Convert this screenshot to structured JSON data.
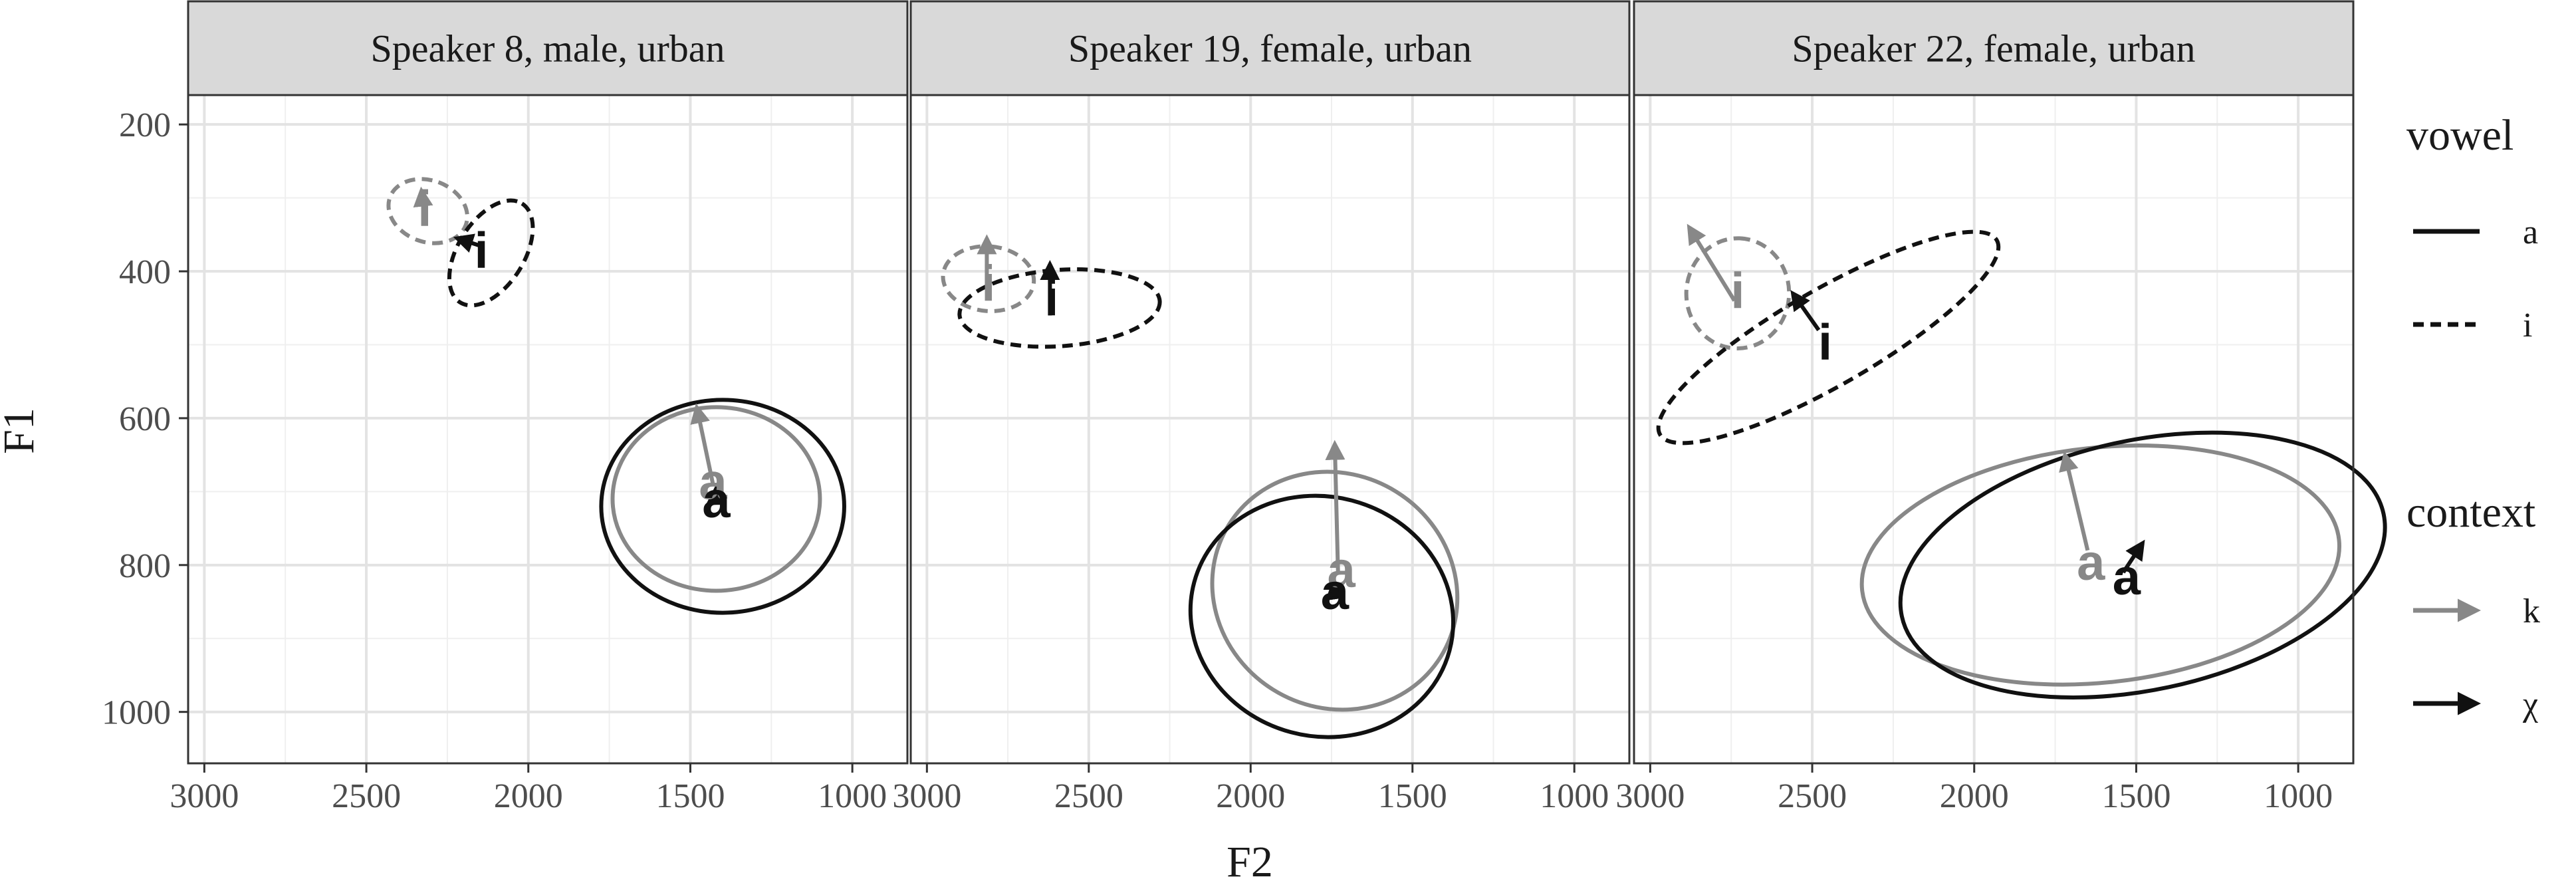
{
  "chart_data": {
    "type": "scatter",
    "xlabel": "F2",
    "ylabel": "F1",
    "x_reversed": true,
    "y_reversed": true,
    "xlim": [
      3050,
      830
    ],
    "ylim": [
      1070,
      160
    ],
    "x_ticks": [
      3000,
      2500,
      2000,
      1500,
      1000
    ],
    "y_ticks": [
      200,
      400,
      600,
      800,
      1000
    ],
    "grid": true,
    "colors": {
      "k": "#888888",
      "χ": "#111111"
    },
    "legend": {
      "position": "right",
      "vowel": {
        "title": "vowel",
        "items": [
          {
            "label": "a",
            "linetype": "solid"
          },
          {
            "label": "i",
            "linetype": "dashed"
          }
        ]
      },
      "context": {
        "title": "context",
        "items": [
          {
            "label": "k",
            "color": "#888888"
          },
          {
            "label": "χ",
            "color": "#111111"
          }
        ]
      }
    },
    "panels": [
      {
        "title": "Speaker 8, male, urban",
        "points": [
          {
            "vowel": "i",
            "context": "k",
            "x": 2320,
            "y": 318
          },
          {
            "vowel": "i",
            "context": "χ",
            "x": 2145,
            "y": 375
          },
          {
            "vowel": "a",
            "context": "k",
            "x": 1430,
            "y": 690
          },
          {
            "vowel": "a",
            "context": "χ",
            "x": 1420,
            "y": 715
          }
        ],
        "arrows": [
          {
            "vowel": "i",
            "context": "k",
            "from": [
              2320,
              330
            ],
            "to": [
              2330,
              290
            ]
          },
          {
            "vowel": "i",
            "context": "χ",
            "from": [
              2150,
              365
            ],
            "to": [
              2220,
              355
            ]
          },
          {
            "vowel": "a",
            "context": "k",
            "from": [
              1430,
              690
            ],
            "to": [
              1480,
              585
            ]
          },
          {
            "vowel": "a",
            "context": "χ",
            "from": [
              1420,
              715
            ],
            "to": [
              1420,
              695
            ]
          }
        ],
        "ellipses": [
          {
            "vowel": "i",
            "context": "k",
            "cx": 2310,
            "cy": 318,
            "rx": 95,
            "ry": 55,
            "angle": 70
          },
          {
            "vowel": "i",
            "context": "χ",
            "cx": 2115,
            "cy": 375,
            "rx": 180,
            "ry": 45,
            "angle": 58
          },
          {
            "vowel": "a",
            "context": "k",
            "cx": 1420,
            "cy": 710,
            "rx": 320,
            "ry": 125,
            "angle": 0
          },
          {
            "vowel": "a",
            "context": "χ",
            "cx": 1400,
            "cy": 720,
            "rx": 375,
            "ry": 145,
            "angle": 0
          }
        ]
      },
      {
        "title": "Speaker 19, female, urban",
        "points": [
          {
            "vowel": "i",
            "context": "k",
            "x": 2810,
            "y": 420
          },
          {
            "vowel": "i",
            "context": "χ",
            "x": 2615,
            "y": 440
          },
          {
            "vowel": "a",
            "context": "k",
            "x": 1720,
            "y": 810
          },
          {
            "vowel": "a",
            "context": "χ",
            "x": 1740,
            "y": 840
          }
        ],
        "arrows": [
          {
            "vowel": "i",
            "context": "k",
            "from": [
              2815,
              420
            ],
            "to": [
              2815,
              355
            ]
          },
          {
            "vowel": "i",
            "context": "χ",
            "from": [
              2620,
              460
            ],
            "to": [
              2620,
              390
            ]
          },
          {
            "vowel": "a",
            "context": "k",
            "from": [
              1730,
              810
            ],
            "to": [
              1740,
              635
            ]
          },
          {
            "vowel": "a",
            "context": "χ",
            "from": [
              1740,
              840
            ],
            "to": [
              1745,
              825
            ]
          }
        ],
        "ellipses": [
          {
            "vowel": "i",
            "context": "k",
            "cx": 2810,
            "cy": 410,
            "rx": 100,
            "ry": 62,
            "angle": 85
          },
          {
            "vowel": "i",
            "context": "χ",
            "cx": 2590,
            "cy": 450,
            "rx": 310,
            "ry": 52,
            "angle": 4
          },
          {
            "vowel": "a",
            "context": "k",
            "cx": 1740,
            "cy": 835,
            "rx": 360,
            "ry": 170,
            "angle": 58
          },
          {
            "vowel": "a",
            "context": "χ",
            "cx": 1780,
            "cy": 870,
            "rx": 370,
            "ry": 180,
            "angle": 75
          }
        ]
      },
      {
        "title": "Speaker 22, female, urban",
        "points": [
          {
            "vowel": "i",
            "context": "k",
            "x": 2730,
            "y": 430
          },
          {
            "vowel": "i",
            "context": "χ",
            "x": 2460,
            "y": 500
          },
          {
            "vowel": "a",
            "context": "k",
            "x": 1640,
            "y": 800
          },
          {
            "vowel": "a",
            "context": "χ",
            "x": 1530,
            "y": 820
          }
        ],
        "arrows": [
          {
            "vowel": "i",
            "context": "k",
            "from": [
              2740,
              440
            ],
            "to": [
              2880,
              340
            ]
          },
          {
            "vowel": "i",
            "context": "χ",
            "from": [
              2480,
              480
            ],
            "to": [
              2560,
              430
            ]
          },
          {
            "vowel": "a",
            "context": "k",
            "from": [
              1650,
              780
            ],
            "to": [
              1720,
              650
            ]
          },
          {
            "vowel": "a",
            "context": "χ",
            "from": [
              1540,
              810
            ],
            "to": [
              1480,
              770
            ]
          }
        ],
        "ellipses": [
          {
            "vowel": "i",
            "context": "k",
            "cx": 2730,
            "cy": 430,
            "rx": 170,
            "ry": 70,
            "angle": 88
          },
          {
            "vowel": "i",
            "context": "χ",
            "cx": 2450,
            "cy": 490,
            "rx": 600,
            "ry": 65,
            "angle": 30
          },
          {
            "vowel": "a",
            "context": "k",
            "cx": 1610,
            "cy": 800,
            "rx": 740,
            "ry": 160,
            "angle": 6
          },
          {
            "vowel": "a",
            "context": "χ",
            "cx": 1480,
            "cy": 800,
            "rx": 760,
            "ry": 170,
            "angle": 12
          }
        ]
      }
    ]
  }
}
